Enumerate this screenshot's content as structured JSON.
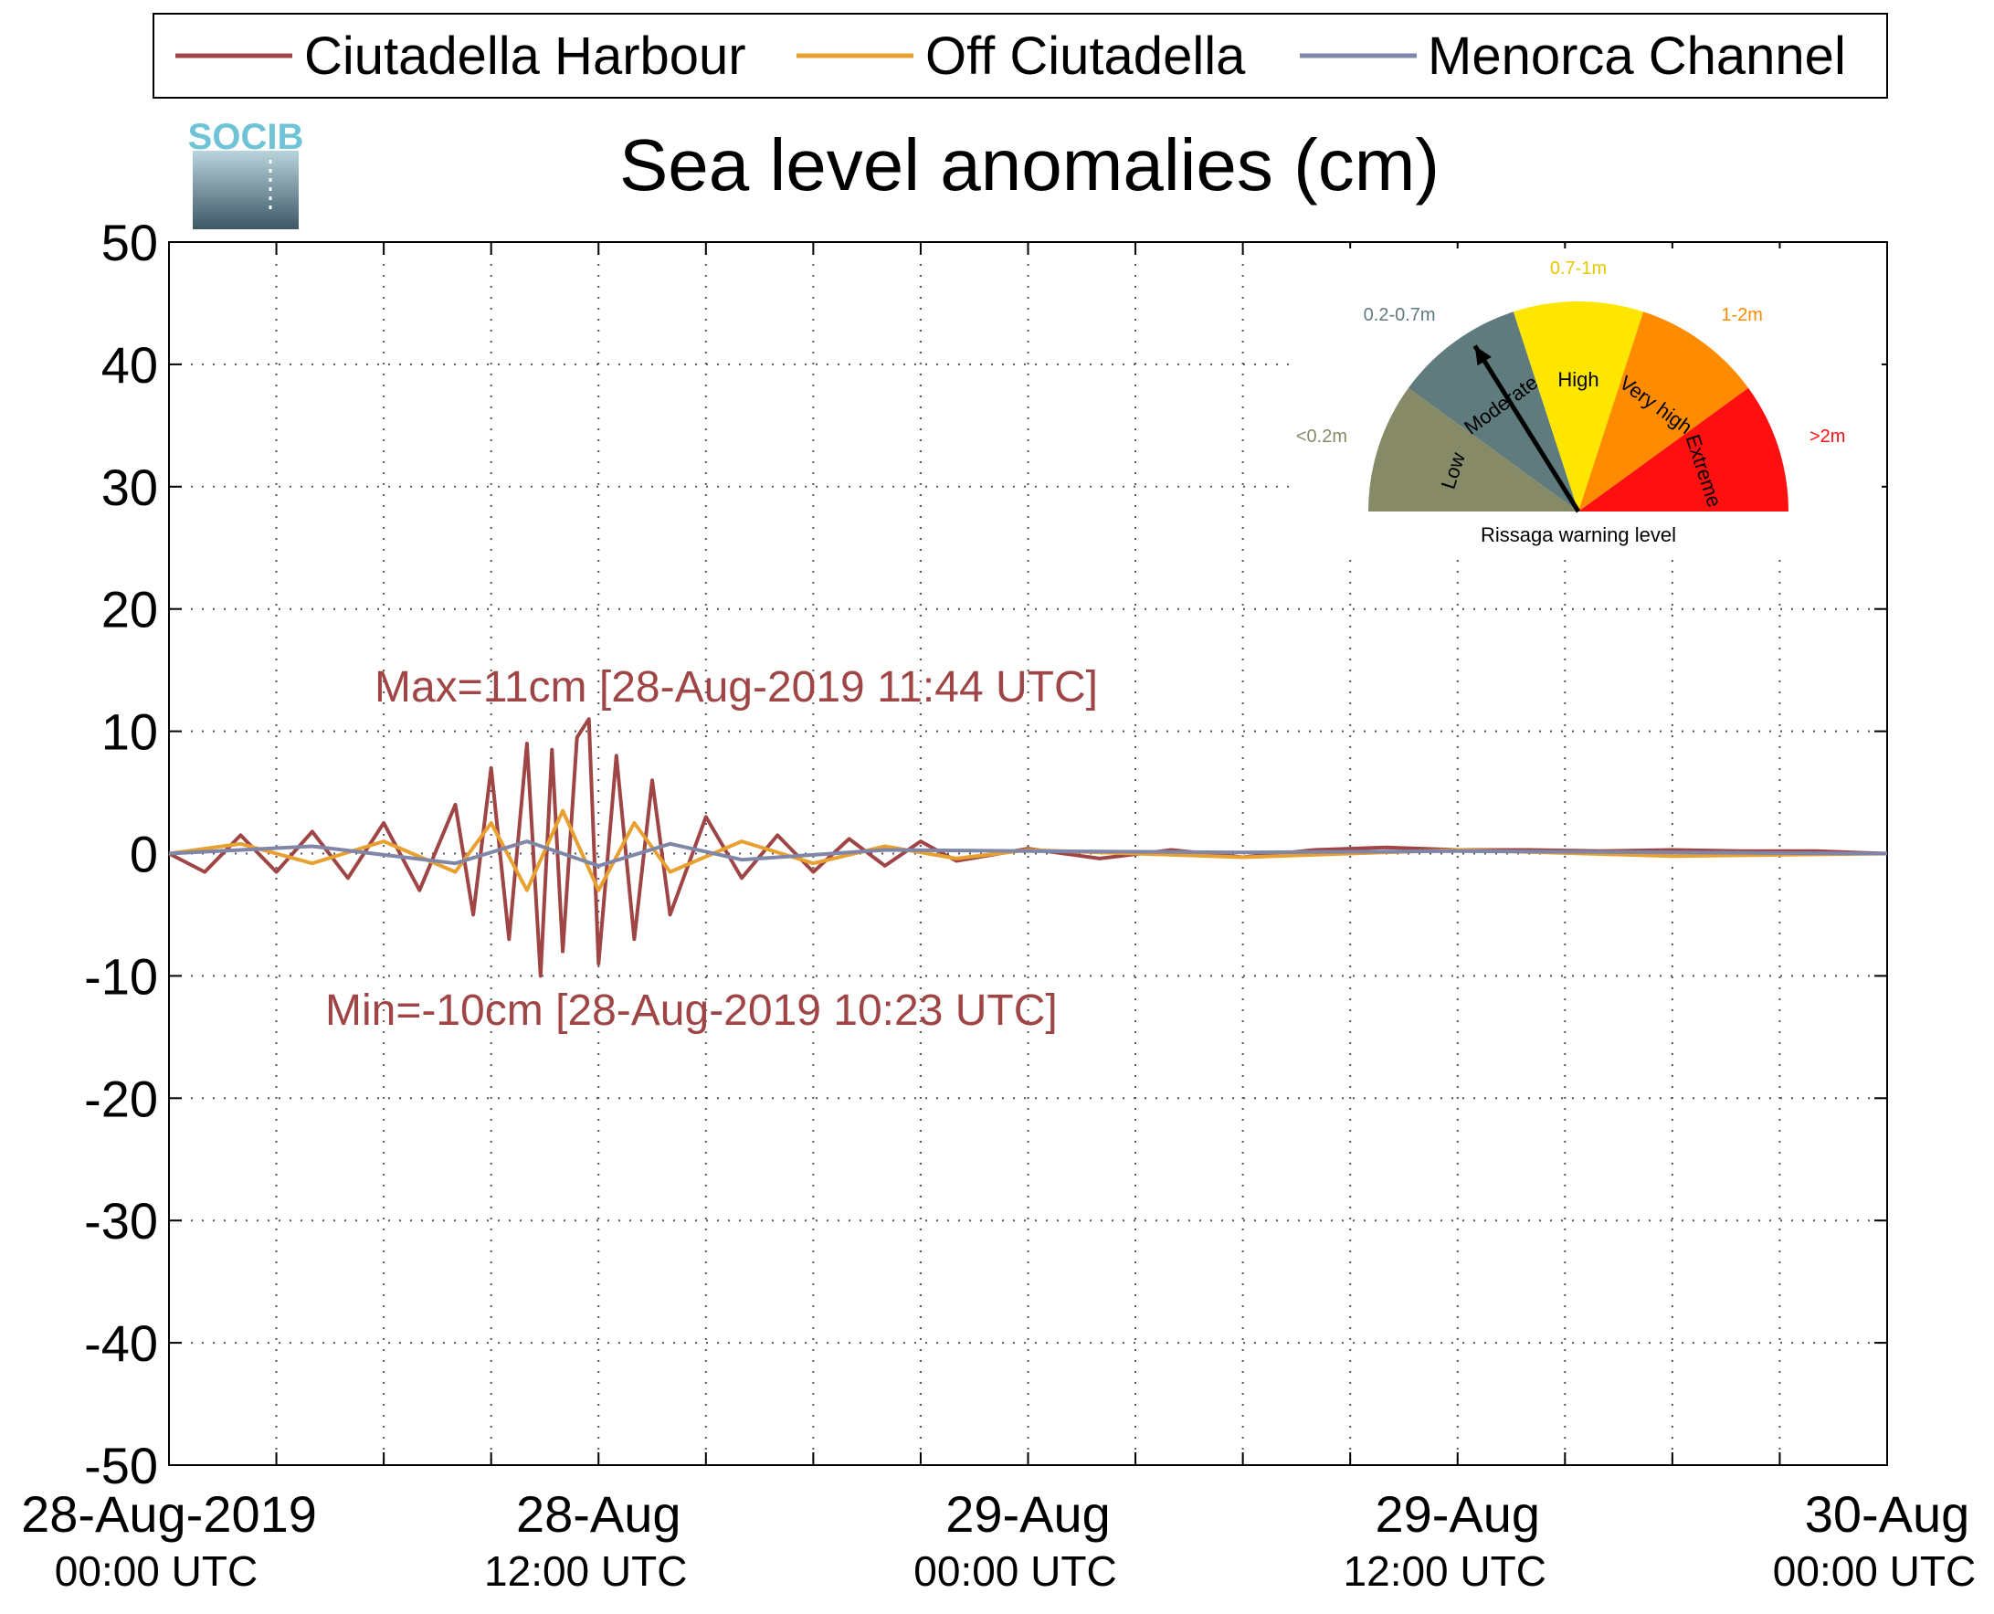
{
  "title": "Sea level anomalies (cm)",
  "logo": {
    "text": "SOCIB",
    "colors": {
      "top": "#6fc3d6",
      "bottom": "#3a5563"
    }
  },
  "legend": [
    {
      "name": "Ciutadella Harbour",
      "color": "#a04545"
    },
    {
      "name": "Off Ciutadella",
      "color": "#e8a030"
    },
    {
      "name": "Menorca Channel",
      "color": "#7f86a8"
    }
  ],
  "annotations": {
    "max": "Max=11cm [28-Aug-2019 11:44 UTC]",
    "min": "Min=-10cm [28-Aug-2019 10:23 UTC]",
    "color": "#a04545"
  },
  "gauge": {
    "title": "Rissaga warning level",
    "segments": [
      {
        "label": "Low",
        "range": "<0.2m",
        "color": "#878a66",
        "range_color": "#878a66"
      },
      {
        "label": "Moderate",
        "range": "0.2-0.7m",
        "color": "#5f7b7e",
        "range_color": "#5f7b7e"
      },
      {
        "label": "High",
        "range": "0.7-1m",
        "color": "#ffe600",
        "range_color": "#e8c800"
      },
      {
        "label": "Very high",
        "range": "1-2m",
        "color": "#ff8c00",
        "range_color": "#ff8c00"
      },
      {
        "label": "Extreme",
        "range": ">2m",
        "color": "#ff1010",
        "range_color": "#ff1010"
      }
    ],
    "needle_level": "Moderate"
  },
  "chart_data": {
    "type": "line",
    "title": "Sea level anomalies (cm)",
    "ylabel": "",
    "xlabel": "",
    "ylim": [
      -50,
      50
    ],
    "yticks": [
      50,
      40,
      30,
      20,
      10,
      0,
      -10,
      -20,
      -30,
      -40,
      -50
    ],
    "xlim_hours": [
      0,
      48
    ],
    "xtick_labels": [
      {
        "hour": 0,
        "line1": "28-Aug-2019",
        "line2": "00:00 UTC"
      },
      {
        "hour": 12,
        "line1": "28-Aug",
        "line2": "12:00 UTC"
      },
      {
        "hour": 24,
        "line1": "29-Aug",
        "line2": "00:00 UTC"
      },
      {
        "hour": 36,
        "line1": "29-Aug",
        "line2": "12:00 UTC"
      },
      {
        "hour": 48,
        "line1": "30-Aug",
        "line2": "00:00 UTC"
      }
    ],
    "grid": true,
    "legend_position": "top",
    "series": [
      {
        "name": "Ciutadella Harbour",
        "color": "#a04545",
        "x_hours": [
          0,
          1,
          2,
          3,
          4,
          5,
          6,
          7,
          8,
          8.5,
          9,
          9.5,
          10,
          10.38,
          10.7,
          11,
          11.4,
          11.73,
          12,
          12.5,
          13,
          13.5,
          14,
          15,
          16,
          17,
          18,
          19,
          20,
          21,
          22,
          24,
          26,
          28,
          30,
          32,
          34,
          36,
          38,
          40,
          42,
          44,
          46,
          48
        ],
        "values": [
          0,
          -1.5,
          1.5,
          -1.5,
          1.8,
          -2,
          2.5,
          -3,
          4,
          -5,
          7,
          -7,
          9,
          -10,
          8.5,
          -8,
          9.5,
          11,
          -9,
          8,
          -7,
          6,
          -5,
          3,
          -2,
          1.5,
          -1.5,
          1.2,
          -1,
          1,
          -0.6,
          0.4,
          -0.4,
          0.3,
          -0.3,
          0.3,
          0.5,
          0.3,
          0.3,
          0.2,
          0.3,
          0.2,
          0.2,
          0
        ]
      },
      {
        "name": "Off Ciutadella",
        "color": "#e8a030",
        "x_hours": [
          0,
          2,
          4,
          6,
          8,
          9,
          10,
          11,
          12,
          13,
          14,
          16,
          18,
          20,
          22,
          24,
          30,
          36,
          42,
          48
        ],
        "values": [
          0,
          0.8,
          -0.8,
          1,
          -1.5,
          2.5,
          -3,
          3.5,
          -3,
          2.5,
          -1.5,
          1,
          -0.8,
          0.6,
          -0.4,
          0.3,
          -0.3,
          0.3,
          -0.2,
          0
        ]
      },
      {
        "name": "Menorca Channel",
        "color": "#7f86a8",
        "x_hours": [
          0,
          4,
          8,
          10,
          12,
          14,
          16,
          20,
          24,
          30,
          36,
          42,
          48
        ],
        "values": [
          0,
          0.6,
          -0.8,
          1,
          -1,
          0.8,
          -0.5,
          0.3,
          0.2,
          0.1,
          0.2,
          0.1,
          0
        ]
      }
    ]
  }
}
